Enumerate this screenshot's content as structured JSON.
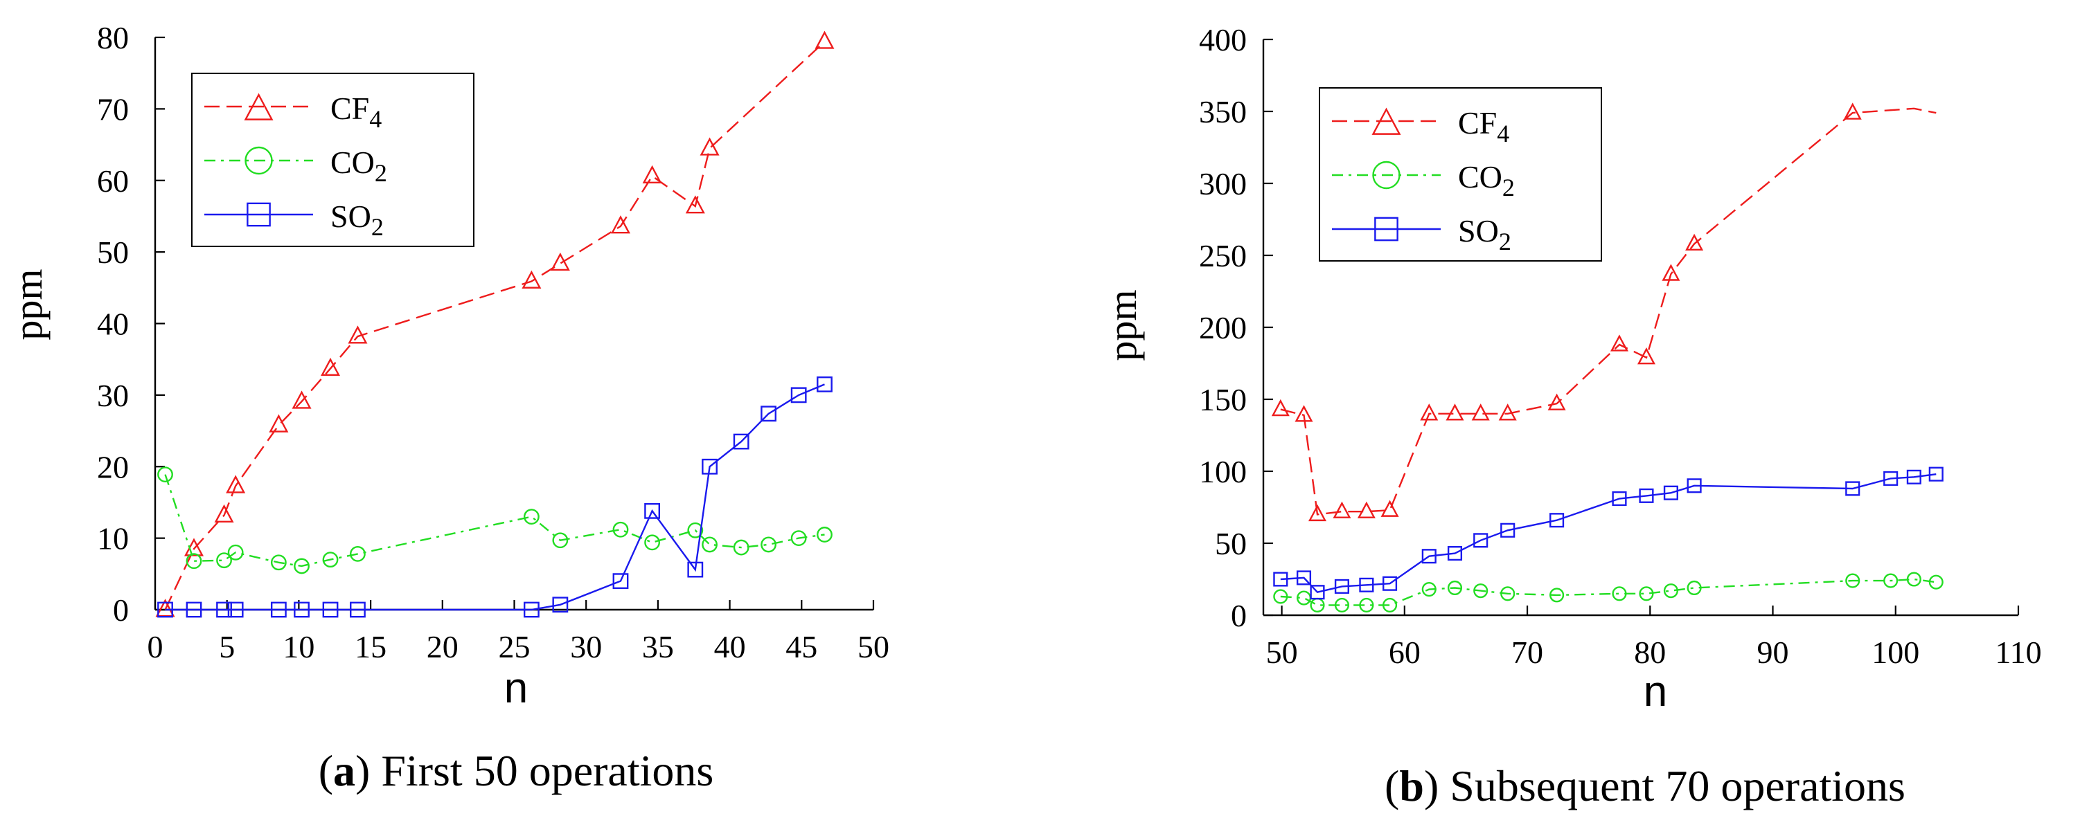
{
  "chart_data": [
    {
      "type": "line",
      "panel_letter": "a",
      "caption": "First 50 operations",
      "xlabel": "n",
      "ylabel": "ppm",
      "xlim": [
        0,
        50
      ],
      "ylim": [
        0,
        80
      ],
      "xticks": [
        0,
        5,
        10,
        15,
        20,
        25,
        30,
        35,
        40,
        45,
        50
      ],
      "yticks": [
        0,
        10,
        20,
        30,
        40,
        50,
        60,
        70,
        80
      ],
      "legend_position": "top-left",
      "series": [
        {
          "name": "CF",
          "subscript": "4",
          "color": "#ee1c1c",
          "marker": "triangle",
          "line_style": "dashed",
          "x": [
            0.7,
            2.7,
            4.8,
            5.6,
            8.6,
            10.2,
            12.2,
            14.1,
            26.2,
            28.2,
            32.4,
            34.6,
            37.6,
            38.6,
            46.6
          ],
          "y": [
            0,
            8.5,
            13.2,
            17.3,
            25.8,
            29.1,
            33.7,
            38.2,
            45.9,
            48.4,
            53.6,
            60.6,
            56.4,
            64.5,
            79.4
          ]
        },
        {
          "name": "CO",
          "subscript": "2",
          "color": "#22dd22",
          "marker": "circle",
          "line_style": "dashdot",
          "x": [
            0.7,
            2.7,
            4.8,
            5.6,
            8.6,
            10.2,
            12.2,
            14.1,
            26.2,
            28.2,
            32.4,
            34.6,
            37.6,
            38.6,
            40.8,
            42.7,
            44.8,
            46.6
          ],
          "y": [
            18.9,
            6.8,
            6.9,
            8.0,
            6.6,
            6.1,
            7.0,
            7.8,
            13.0,
            9.7,
            11.2,
            9.4,
            11.1,
            9.1,
            8.7,
            9.1,
            10.0,
            10.5
          ]
        },
        {
          "name": "SO",
          "subscript": "2",
          "color": "#1a1aee",
          "marker": "square",
          "line_style": "solid",
          "x": [
            0.7,
            2.7,
            4.8,
            5.6,
            8.6,
            10.2,
            12.2,
            14.1,
            26.2,
            28.2,
            32.4,
            34.6,
            37.6,
            38.6,
            40.8,
            42.7,
            44.8,
            46.6
          ],
          "y": [
            0,
            0,
            0,
            0,
            0,
            0,
            0,
            0,
            0,
            0.7,
            4.0,
            13.8,
            5.6,
            20.0,
            23.5,
            27.4,
            30.0,
            31.5
          ]
        }
      ]
    },
    {
      "type": "line",
      "panel_letter": "b",
      "caption": "Subsequent 70 operations",
      "xlabel": "n",
      "ylabel": "ppm",
      "xlim": [
        48.5,
        110
      ],
      "ylim": [
        0,
        400
      ],
      "xticks": [
        50,
        60,
        70,
        80,
        90,
        100,
        110
      ],
      "yticks": [
        0,
        50,
        100,
        150,
        200,
        250,
        300,
        350,
        400
      ],
      "legend_position": "top-left",
      "series": [
        {
          "name": "CF",
          "subscript": "4",
          "color": "#ee1c1c",
          "marker": "triangle",
          "line_style": "dashed",
          "x": [
            49.9,
            51.8,
            52.9,
            54.9,
            56.9,
            58.8,
            62,
            64.1,
            66.2,
            68.4,
            72.4,
            77.5,
            79.7,
            81.7,
            83.6,
            96.5,
            101.5,
            103.3
          ],
          "y": [
            143,
            139,
            70,
            72,
            72,
            73,
            140,
            140,
            140,
            140,
            147,
            188,
            179,
            237,
            258,
            349,
            352,
            349
          ],
          "markers": [
            true,
            true,
            true,
            true,
            true,
            true,
            true,
            true,
            true,
            true,
            true,
            true,
            true,
            true,
            true,
            true,
            false,
            false
          ]
        },
        {
          "name": "CO",
          "subscript": "2",
          "color": "#22dd22",
          "marker": "circle",
          "line_style": "dashdot",
          "x": [
            49.9,
            51.8,
            52.9,
            54.9,
            56.9,
            58.8,
            62,
            64.1,
            66.2,
            68.4,
            72.4,
            77.5,
            79.7,
            81.7,
            83.6,
            96.5,
            99.6,
            101.5,
            103.3
          ],
          "y": [
            13,
            12,
            7,
            7,
            7,
            7,
            18,
            19,
            17,
            15,
            14,
            15,
            15,
            17,
            19,
            24,
            24,
            25,
            23
          ]
        },
        {
          "name": "SO",
          "subscript": "2",
          "color": "#1a1aee",
          "marker": "square",
          "line_style": "solid",
          "x": [
            49.9,
            51.8,
            52.9,
            54.9,
            56.9,
            58.8,
            62,
            64.1,
            66.2,
            68.4,
            72.4,
            77.5,
            79.7,
            81.7,
            83.6,
            96.5,
            99.6,
            101.5,
            103.3
          ],
          "y": [
            25,
            26,
            16,
            20,
            21,
            22,
            41,
            43,
            52,
            59,
            66,
            81,
            83,
            85,
            90,
            88,
            95,
            96,
            98
          ]
        }
      ]
    }
  ]
}
